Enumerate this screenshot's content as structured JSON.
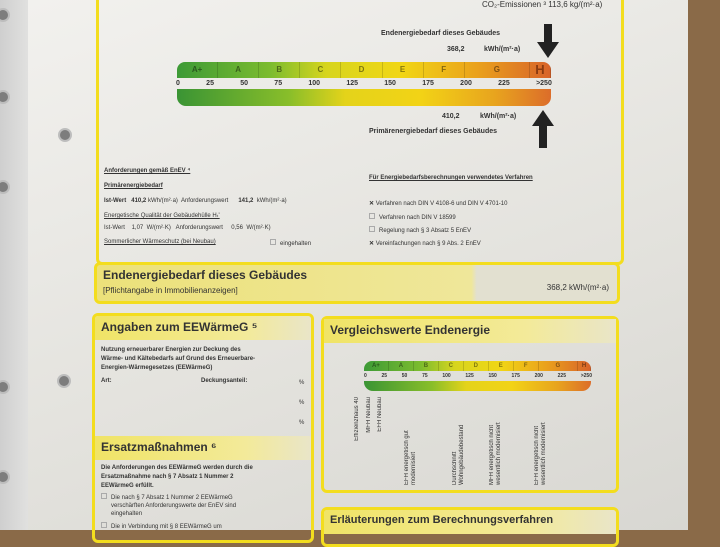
{
  "co2": "CO₂-Emissionen ³  113,6 kg/(m²·a)",
  "top": {
    "end_label": "Endenergiebedarf dieses Gebäudes",
    "end_value": "368,2",
    "unit": "kWh/(m²·a)",
    "classes": [
      "A+",
      "A",
      "B",
      "C",
      "D",
      "E",
      "F",
      "G",
      "H"
    ],
    "ticks": [
      "0",
      "25",
      "50",
      "75",
      "100",
      "125",
      "150",
      "175",
      "200",
      "225",
      ">250"
    ],
    "primary_value": "410,2",
    "primary_label": "Primärenergiebedarf dieses Gebäudes"
  },
  "requirements": {
    "title": "Anforderungen gemäß EnEV ⁴",
    "primary_title": "Primärenergiebedarf",
    "row1": {
      "label": "Ist-Wert",
      "value": "410,2",
      "unit": "kWh/(m²·a)",
      "req_label": "Anforderungswert",
      "req_value": "141,2",
      "req_unit": "kWh/(m²·a)"
    },
    "hull_title": "Energetische Qualität der Gebäudehülle Hₜ'",
    "row2": {
      "label": "Ist-Wert",
      "value": "1,07",
      "unit": "W/(m²·K)",
      "req_label": "Anforderungswert",
      "req_value": "0,56",
      "req_unit": "W/(m²·K)"
    },
    "summer": "Sommerlicher Wärmeschutz (bei Neubau)",
    "summer_check": "eingehalten"
  },
  "method": {
    "title": "Für Energiebedarfsberechnungen verwendetes Verfahren",
    "items": [
      {
        "label": "Verfahren nach DIN V 4108-6 und DIN V 4701-10",
        "checked": true
      },
      {
        "label": "Verfahren nach DIN V 18599",
        "checked": false
      },
      {
        "label": "Regelung nach § 3 Absatz 5 EnEV",
        "checked": false
      },
      {
        "label": "Vereinfachungen nach § 9 Abs. 2 EnEV",
        "checked": true
      }
    ]
  },
  "final": {
    "title": "Endenergiebedarf dieses Gebäudes",
    "subtitle": "[Pflichtangabe in Immobilienanzeigen]",
    "value": "368,2 kWh/(m²·a)"
  },
  "eew": {
    "title": "Angaben zum EEWärmeG ⁵",
    "text": [
      "Nutzung erneuerbarer Energien zur Deckung des",
      "Wärme- und Kältebedarfs auf Grund des Erneuerbare-",
      "Energien-Wärmegesetzes (EEWärmeG)"
    ],
    "art": "Art:",
    "share": "Deckungsanteil:",
    "pct": "%"
  },
  "ersatz": {
    "title": "Ersatzmaßnahmen ⁶",
    "text": [
      "Die Anforderungen des EEWärmeG werden durch die",
      "Ersatzmaßnahme nach § 7 Absatz 1 Nummer 2",
      "EEWärmeG erfüllt."
    ],
    "opt1": [
      "Die nach § 7 Absatz 1 Nummer 2 EEWärmeG",
      "verschärften Anforderungswerte der EnEV sind",
      "eingehalten"
    ],
    "opt2": "Die in Verbindung mit § 8 EEWärmeG um"
  },
  "compare": {
    "title": "Vergleichswerte Endenergie",
    "classes": [
      "A+",
      "A",
      "B",
      "C",
      "D",
      "E",
      "F",
      "G",
      "H"
    ],
    "ticks": [
      "0",
      "25",
      "50",
      "75",
      "100",
      "125",
      "150",
      "175",
      "200",
      "225",
      ">250"
    ],
    "labels": [
      "Effizienzhaus 40",
      "MFH Neubau",
      "EFH Neubau",
      "EFH energetisch gut modernisiert",
      "Durchschnitt Wohngebäudebestand",
      "MFH energetisch nicht wesentlich modernisiert",
      "EFH energetisch nicht wesentlich modernisiert"
    ]
  },
  "explain": {
    "title": "Erläuterungen zum Berechnungsverfahren"
  }
}
